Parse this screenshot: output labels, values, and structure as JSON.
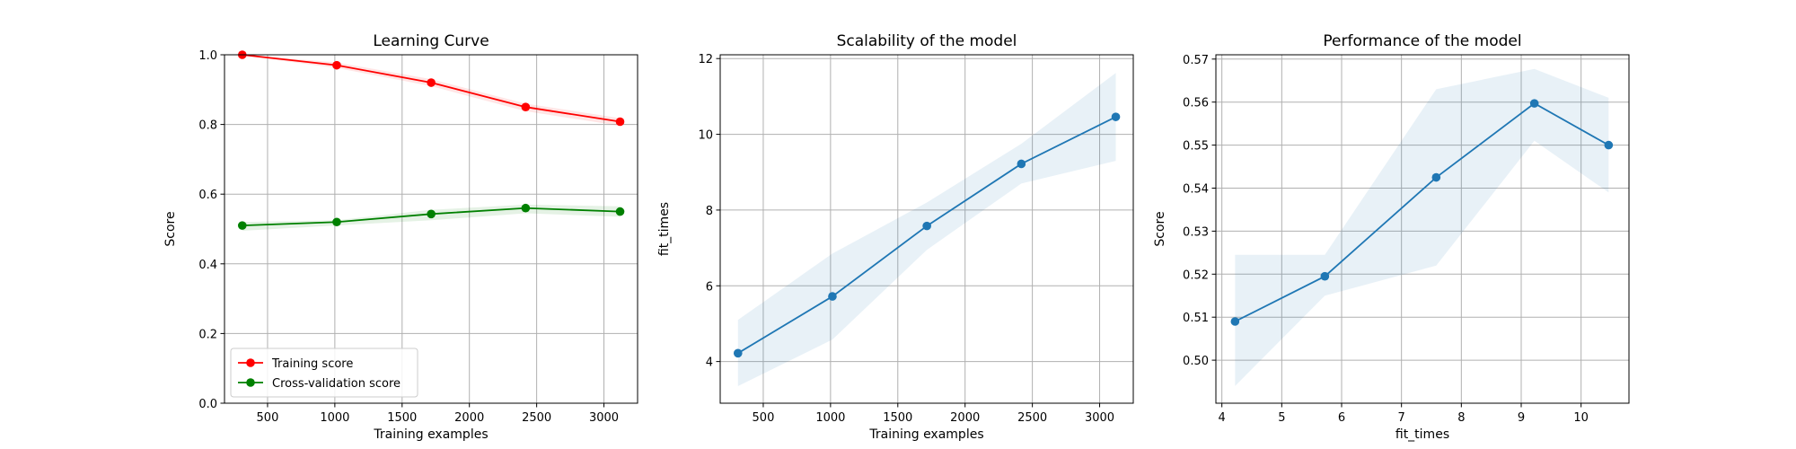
{
  "chart_data": [
    {
      "type": "line",
      "title": "Learning Curve",
      "xlabel": "Training examples",
      "ylabel": "Score",
      "xlim": [
        180,
        3250
      ],
      "ylim": [
        0.0,
        1.0
      ],
      "xticks": [
        500,
        1000,
        1500,
        2000,
        2500,
        3000
      ],
      "yticks": [
        0.0,
        0.2,
        0.4,
        0.6,
        0.8,
        1.0
      ],
      "xtick_labels": [
        "500",
        "1000",
        "1500",
        "2000",
        "2500",
        "3000"
      ],
      "ytick_labels": [
        "0.0",
        "0.2",
        "0.4",
        "0.6",
        "0.8",
        "1.0"
      ],
      "grid": true,
      "legend": "lower-left",
      "x": [
        312,
        1014,
        1716,
        2418,
        3120
      ],
      "series": [
        {
          "name": "Training score",
          "color": "#ff0000",
          "marker": "circle",
          "values": [
            1.0,
            0.97,
            0.92,
            0.85,
            0.808
          ],
          "band_lower": [
            0.998,
            0.962,
            0.91,
            0.838,
            0.796
          ],
          "band_upper": [
            1.0,
            0.978,
            0.93,
            0.86,
            0.818
          ]
        },
        {
          "name": "Cross-validation score",
          "color": "#008000",
          "marker": "circle",
          "values": [
            0.51,
            0.52,
            0.543,
            0.56,
            0.55
          ],
          "band_lower": [
            0.495,
            0.51,
            0.525,
            0.545,
            0.535
          ],
          "band_upper": [
            0.52,
            0.525,
            0.555,
            0.57,
            0.565
          ]
        }
      ]
    },
    {
      "type": "line",
      "title": "Scalability of the model",
      "xlabel": "Training examples",
      "ylabel": "fit_times",
      "xlim": [
        180,
        3250
      ],
      "ylim": [
        2.9,
        12.1
      ],
      "xticks": [
        500,
        1000,
        1500,
        2000,
        2500,
        3000
      ],
      "yticks": [
        4,
        6,
        8,
        10,
        12
      ],
      "xtick_labels": [
        "500",
        "1000",
        "1500",
        "2000",
        "2500",
        "3000"
      ],
      "ytick_labels": [
        "4",
        "6",
        "8",
        "10",
        "12"
      ],
      "grid": true,
      "x": [
        312,
        1014,
        1716,
        2418,
        3120
      ],
      "series": [
        {
          "color": "#1f77b4",
          "marker": "circle",
          "values": [
            4.22,
            5.72,
            7.58,
            9.22,
            10.46
          ],
          "band_lower": [
            3.35,
            4.58,
            6.95,
            8.7,
            9.3
          ],
          "band_upper": [
            5.1,
            6.85,
            8.2,
            9.75,
            11.62
          ]
        }
      ]
    },
    {
      "type": "line",
      "title": "Performance of the model",
      "xlabel": "fit_times",
      "ylabel": "Score",
      "xlim": [
        3.9,
        10.8
      ],
      "ylim": [
        0.49,
        0.571
      ],
      "xticks": [
        4,
        5,
        6,
        7,
        8,
        9,
        10
      ],
      "yticks": [
        0.5,
        0.51,
        0.52,
        0.53,
        0.54,
        0.55,
        0.56,
        0.57
      ],
      "xtick_labels": [
        "4",
        "5",
        "6",
        "7",
        "8",
        "9",
        "10"
      ],
      "ytick_labels": [
        "0.50",
        "0.51",
        "0.52",
        "0.53",
        "0.54",
        "0.55",
        "0.56",
        "0.57"
      ],
      "grid": true,
      "x": [
        4.22,
        5.72,
        7.58,
        9.22,
        10.46
      ],
      "series": [
        {
          "color": "#1f77b4",
          "marker": "circle",
          "values": [
            0.509,
            0.5195,
            0.5425,
            0.5597,
            0.55
          ],
          "band_lower": [
            0.494,
            0.515,
            0.522,
            0.551,
            0.539
          ],
          "band_upper": [
            0.5245,
            0.5245,
            0.563,
            0.5677,
            0.561
          ]
        }
      ]
    }
  ]
}
